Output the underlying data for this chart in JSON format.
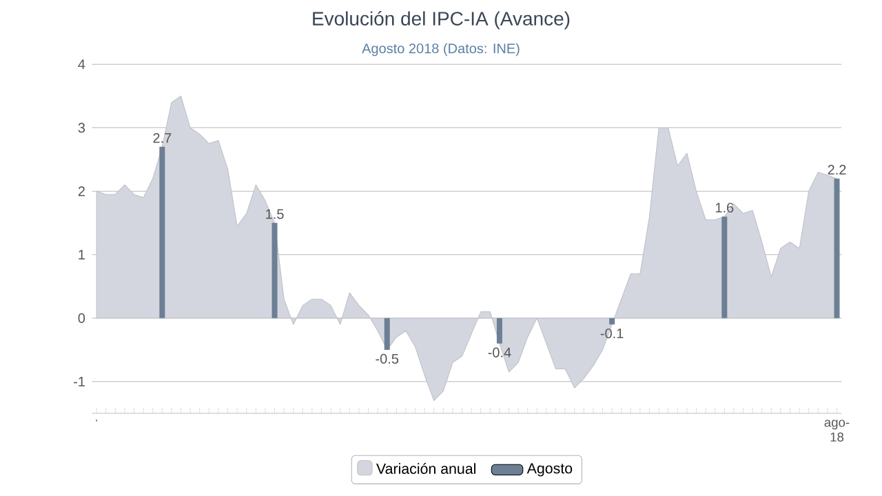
{
  "chart_data": {
    "type": "area",
    "title": "Evolución del IPC-IA (Avance)",
    "subtitle": "Agosto 2018 (Datos: INE)",
    "categories": [
      ".",
      null,
      null,
      null,
      null,
      null,
      null,
      null,
      null,
      null,
      null,
      null,
      null,
      null,
      null,
      null,
      null,
      null,
      null,
      null,
      null,
      null,
      null,
      null,
      null,
      null,
      null,
      null,
      null,
      null,
      null,
      null,
      null,
      null,
      null,
      null,
      null,
      null,
      null,
      null,
      null,
      null,
      null,
      null,
      null,
      null,
      null,
      null,
      null,
      null,
      null,
      null,
      null,
      null,
      null,
      null,
      null,
      null,
      null,
      null,
      null,
      null,
      null,
      null,
      null,
      null,
      null,
      null,
      null,
      null,
      null,
      null,
      null,
      null,
      null,
      null,
      null,
      null,
      null,
      "ago-18"
    ],
    "series": [
      {
        "name": "Variación anual",
        "color": "#d3d6de",
        "values": [
          2.0,
          1.95,
          1.95,
          2.1,
          1.95,
          1.9,
          2.2,
          2.7,
          3.4,
          3.5,
          3.0,
          2.9,
          2.75,
          2.8,
          2.35,
          1.45,
          1.65,
          2.1,
          1.85,
          1.5,
          0.3,
          -0.1,
          0.2,
          0.3,
          0.3,
          0.2,
          -0.1,
          0.4,
          0.2,
          0.05,
          -0.2,
          -0.5,
          -0.3,
          -0.2,
          -0.45,
          -0.9,
          -1.3,
          -1.15,
          -0.7,
          -0.6,
          -0.25,
          0.1,
          0.1,
          -0.4,
          -0.85,
          -0.7,
          -0.3,
          0.0,
          -0.4,
          -0.8,
          -0.8,
          -1.1,
          -0.95,
          -0.75,
          -0.5,
          -0.1,
          0.3,
          0.7,
          0.7,
          1.6,
          3.0,
          3.0,
          2.4,
          2.6,
          2.0,
          1.55,
          1.55,
          1.6,
          1.8,
          1.65,
          1.7,
          1.2,
          0.65,
          1.1,
          1.2,
          1.1,
          2.0,
          2.3,
          2.25,
          2.2
        ]
      },
      {
        "name": "Agosto",
        "type": "bar",
        "color": "#6c7f95",
        "values": [
          null,
          null,
          null,
          null,
          null,
          null,
          null,
          2.7,
          null,
          null,
          null,
          null,
          null,
          null,
          null,
          null,
          null,
          null,
          null,
          1.5,
          null,
          null,
          null,
          null,
          null,
          null,
          null,
          null,
          null,
          null,
          null,
          -0.5,
          null,
          null,
          null,
          null,
          null,
          null,
          null,
          null,
          null,
          null,
          null,
          -0.4,
          null,
          null,
          null,
          null,
          null,
          null,
          null,
          null,
          null,
          null,
          null,
          -0.1,
          null,
          null,
          null,
          null,
          null,
          null,
          null,
          null,
          null,
          null,
          null,
          1.6,
          null,
          null,
          null,
          null,
          null,
          null,
          null,
          null,
          null,
          null,
          null,
          2.2
        ],
        "value_labels": [
          null,
          null,
          null,
          null,
          null,
          null,
          null,
          "2.7",
          null,
          null,
          null,
          null,
          null,
          null,
          null,
          null,
          null,
          null,
          null,
          "1.5",
          null,
          null,
          null,
          null,
          null,
          null,
          null,
          null,
          null,
          null,
          null,
          "-0.5",
          null,
          null,
          null,
          null,
          null,
          null,
          null,
          null,
          null,
          null,
          null,
          "-0.4",
          null,
          null,
          null,
          null,
          null,
          null,
          null,
          null,
          null,
          null,
          null,
          "-0.1",
          null,
          null,
          null,
          null,
          null,
          null,
          null,
          null,
          null,
          null,
          null,
          "1.6",
          null,
          null,
          null,
          null,
          null,
          null,
          null,
          null,
          null,
          null,
          null,
          "2.2"
        ]
      }
    ],
    "ylim": [
      -1.5,
      4
    ],
    "yticks": [
      -1,
      0,
      1,
      2,
      3,
      4
    ],
    "grid": "y",
    "legend": "bottom"
  }
}
